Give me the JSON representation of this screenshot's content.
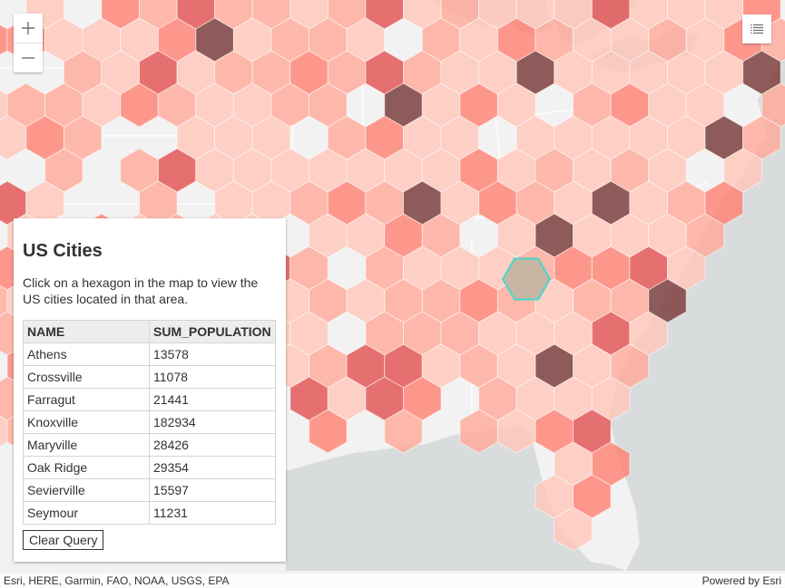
{
  "colors": {
    "land": "#f2f2f2",
    "water": "#d9dcdc",
    "border": "#ffffff",
    "bin_lightest": "#ffc6b9",
    "bin_light": "#ffa998",
    "bin_mid": "#ff7f72",
    "bin_dark": "#e14f4e",
    "bin_darkest": "#7e3f3f",
    "selected_fill": "#c7b6a4",
    "selected_outline": "#46d6d0"
  },
  "map": {
    "zoom_in_icon": "plus-icon",
    "zoom_out_icon": "minus-icon",
    "layer_list_icon": "list-icon"
  },
  "panel": {
    "title": "US Cities",
    "description": "Click on a hexagon in the map to view the US cities located in that area.",
    "columns": [
      "NAME",
      "SUM_POPULATION"
    ],
    "rows": [
      [
        "Athens",
        "13578"
      ],
      [
        "Crossville",
        "11078"
      ],
      [
        "Farragut",
        "21441"
      ],
      [
        "Knoxville",
        "182934"
      ],
      [
        "Maryville",
        "28426"
      ],
      [
        "Oak Ridge",
        "29354"
      ],
      [
        "Sevierville",
        "15597"
      ],
      [
        "Seymour",
        "11231"
      ]
    ],
    "clear_label": "Clear Query"
  },
  "attribution": {
    "sources": "Esri, HERE, Garmin, FAO, NOAA, USGS, EPA",
    "powered_by": "Powered by Esri"
  }
}
